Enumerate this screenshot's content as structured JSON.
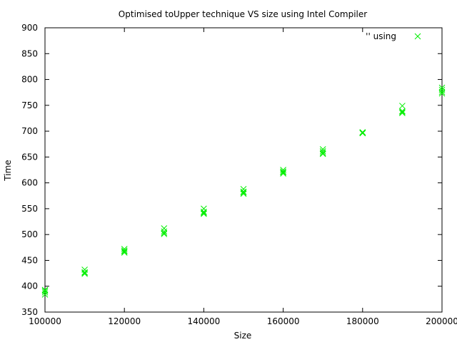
{
  "chart_data": {
    "type": "scatter",
    "title": "Optimised toUpper technique VS size using Intel Compiler",
    "xlabel": "Size",
    "ylabel": "Time",
    "xlim": [
      100000,
      200000
    ],
    "ylim": [
      350,
      900
    ],
    "x_ticks": [
      100000,
      120000,
      140000,
      160000,
      180000,
      200000
    ],
    "y_ticks": [
      350,
      400,
      450,
      500,
      550,
      600,
      650,
      700,
      750,
      800,
      850,
      900
    ],
    "grid": false,
    "legend_position": "top-right",
    "series": [
      {
        "name": "'' using",
        "color": "#00ee00",
        "marker": "x",
        "points": [
          [
            100000,
            384
          ],
          [
            100000,
            388
          ],
          [
            100000,
            391
          ],
          [
            100000,
            393
          ],
          [
            110000,
            424
          ],
          [
            110000,
            426
          ],
          [
            110000,
            427
          ],
          [
            110000,
            432
          ],
          [
            120000,
            465
          ],
          [
            120000,
            467
          ],
          [
            120000,
            469
          ],
          [
            120000,
            472
          ],
          [
            130000,
            501
          ],
          [
            130000,
            503
          ],
          [
            130000,
            506
          ],
          [
            130000,
            512
          ],
          [
            140000,
            540
          ],
          [
            140000,
            542
          ],
          [
            140000,
            544
          ],
          [
            140000,
            550
          ],
          [
            150000,
            579
          ],
          [
            150000,
            581
          ],
          [
            150000,
            583
          ],
          [
            150000,
            588
          ],
          [
            160000,
            618
          ],
          [
            160000,
            620
          ],
          [
            160000,
            622
          ],
          [
            160000,
            625
          ],
          [
            170000,
            656
          ],
          [
            170000,
            658
          ],
          [
            170000,
            661
          ],
          [
            170000,
            665
          ],
          [
            180000,
            696
          ],
          [
            180000,
            697
          ],
          [
            180000,
            698
          ],
          [
            190000,
            735
          ],
          [
            190000,
            737
          ],
          [
            190000,
            739
          ],
          [
            190000,
            749
          ],
          [
            200000,
            773
          ],
          [
            200000,
            776
          ],
          [
            200000,
            780
          ],
          [
            200000,
            784
          ]
        ]
      }
    ]
  }
}
